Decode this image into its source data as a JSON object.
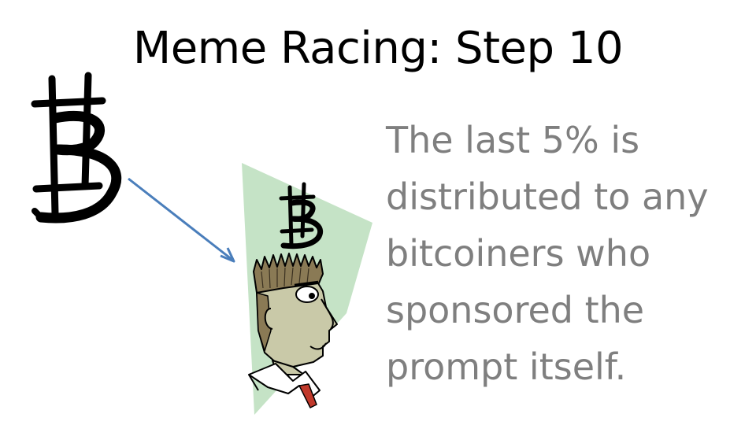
{
  "slide": {
    "title": "Meme Racing: Step 10",
    "body_lines": [
      "The last 5% is",
      "distributed to any",
      "bitcoiners who",
      "sponsored the",
      "prompt itself."
    ]
  },
  "icons": {
    "large_logo": "bitcoin-b-logo-icon",
    "small_logo": "bitcoin-b-logo-icon",
    "arrow": "arrow-icon",
    "person": "cartoon-man-icon"
  },
  "colors": {
    "title": "#000000",
    "body": "#7f7f7f",
    "arrow": "#4a7ebb",
    "green_panel": "#c5e3c6",
    "tie": "#c0392b"
  }
}
